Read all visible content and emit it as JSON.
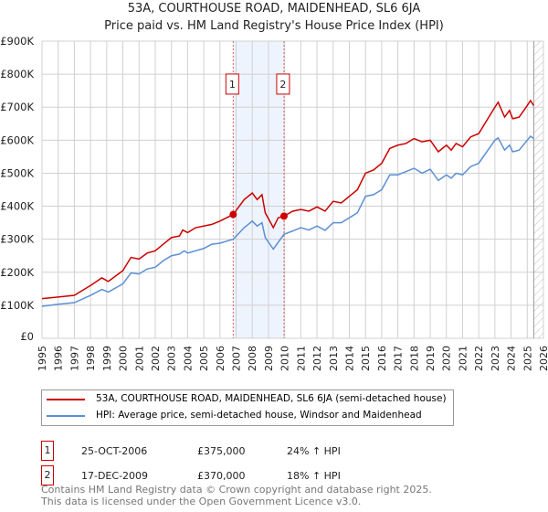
{
  "chart_data": {
    "type": "line",
    "title": "53A, COURTHOUSE ROAD, MAIDENHEAD, SL6 6JA",
    "subtitle": "Price paid vs. HM Land Registry's House Price Index (HPI)",
    "xlim": [
      1995,
      2026
    ],
    "ylim": [
      0,
      900000
    ],
    "yticks": [
      {
        "v": 0,
        "l": "£0"
      },
      {
        "v": 100000,
        "l": "£100K"
      },
      {
        "v": 200000,
        "l": "£200K"
      },
      {
        "v": 300000,
        "l": "£300K"
      },
      {
        "v": 400000,
        "l": "£400K"
      },
      {
        "v": 500000,
        "l": "£500K"
      },
      {
        "v": 600000,
        "l": "£600K"
      },
      {
        "v": 700000,
        "l": "£700K"
      },
      {
        "v": 800000,
        "l": "£800K"
      },
      {
        "v": 900000,
        "l": "£900K"
      }
    ],
    "xticks": [
      "1995",
      "1996",
      "1997",
      "1998",
      "1999",
      "2000",
      "2001",
      "2002",
      "2003",
      "2004",
      "2005",
      "2006",
      "2007",
      "2008",
      "2009",
      "2010",
      "2011",
      "2012",
      "2013",
      "2014",
      "2015",
      "2016",
      "2017",
      "2018",
      "2019",
      "2020",
      "2021",
      "2022",
      "2023",
      "2024",
      "2025",
      "2026"
    ],
    "grid": true,
    "shaded_range": [
      2006.82,
      2009.96
    ],
    "future_hatch_from": 2025.4,
    "series": [
      {
        "name": "53A, COURTHOUSE ROAD, MAIDENHEAD, SL6 6JA (semi-detached house)",
        "color": "#cc0000",
        "x": [
          1995,
          1996,
          1997,
          1998,
          1998.7,
          1999.1,
          2000,
          2000.5,
          2001,
          2001.5,
          2002,
          2002.5,
          2003,
          2003.5,
          2003.7,
          2004,
          2004.5,
          2005,
          2005.5,
          2006,
          2006.82,
          2007.5,
          2008,
          2008.3,
          2008.6,
          2008.8,
          2009.3,
          2009.6,
          2009.96,
          2010.5,
          2011,
          2011.5,
          2012,
          2012.5,
          2013,
          2013.5,
          2014,
          2014.5,
          2015,
          2015.5,
          2016,
          2016.5,
          2017,
          2017.5,
          2018,
          2018.5,
          2019,
          2019.5,
          2020,
          2020.3,
          2020.6,
          2021,
          2021.5,
          2022,
          2022.5,
          2023,
          2023.2,
          2023.6,
          2023.9,
          2024.1,
          2024.5,
          2025,
          2025.2,
          2025.4
        ],
        "y": [
          120000,
          125000,
          130000,
          160000,
          183000,
          172000,
          205000,
          245000,
          240000,
          258000,
          265000,
          285000,
          305000,
          310000,
          328000,
          320000,
          335000,
          340000,
          345000,
          355000,
          375000,
          420000,
          440000,
          420000,
          435000,
          380000,
          335000,
          365000,
          370000,
          385000,
          390000,
          385000,
          398000,
          385000,
          415000,
          410000,
          430000,
          450000,
          500000,
          510000,
          530000,
          575000,
          585000,
          590000,
          605000,
          595000,
          600000,
          565000,
          585000,
          570000,
          590000,
          580000,
          610000,
          620000,
          660000,
          700000,
          715000,
          670000,
          690000,
          665000,
          670000,
          705000,
          720000,
          705000
        ]
      },
      {
        "name": "HPI: Average price, semi-detached house, Windsor and Maidenhead",
        "color": "#5b8fd4",
        "x": [
          1995,
          1996,
          1997,
          1998,
          1998.7,
          1999.1,
          2000,
          2000.5,
          2001,
          2001.5,
          2002,
          2002.5,
          2003,
          2003.5,
          2003.8,
          2004,
          2005,
          2005.5,
          2006,
          2006.82,
          2007.5,
          2008,
          2008.3,
          2008.6,
          2008.8,
          2009.3,
          2009.96,
          2010.5,
          2011,
          2011.5,
          2012,
          2012.5,
          2013,
          2013.5,
          2014,
          2014.5,
          2015,
          2015.5,
          2016,
          2016.5,
          2017,
          2017.5,
          2018,
          2018.5,
          2019,
          2019.5,
          2020,
          2020.3,
          2020.6,
          2021,
          2021.5,
          2022,
          2022.5,
          2023,
          2023.2,
          2023.6,
          2023.9,
          2024.1,
          2024.5,
          2025,
          2025.2,
          2025.4
        ],
        "y": [
          97000,
          103000,
          108000,
          130000,
          148000,
          140000,
          165000,
          198000,
          195000,
          210000,
          215000,
          235000,
          250000,
          255000,
          265000,
          258000,
          272000,
          285000,
          288000,
          300000,
          335000,
          355000,
          340000,
          350000,
          305000,
          270000,
          315000,
          325000,
          335000,
          328000,
          340000,
          327000,
          350000,
          350000,
          365000,
          380000,
          430000,
          435000,
          450000,
          495000,
          495000,
          505000,
          515000,
          500000,
          512000,
          478000,
          495000,
          485000,
          500000,
          495000,
          520000,
          530000,
          565000,
          600000,
          607000,
          570000,
          585000,
          565000,
          570000,
          600000,
          612000,
          605000
        ]
      }
    ],
    "sales": [
      {
        "label": "1",
        "x": 2006.82,
        "y": 375000,
        "date": "25-OCT-2006",
        "price": "£375,000",
        "hpi": "24% ↑ HPI"
      },
      {
        "label": "2",
        "x": 2009.96,
        "y": 370000,
        "date": "17-DEC-2009",
        "price": "£370,000",
        "hpi": "18% ↑ HPI"
      }
    ]
  },
  "footer": {
    "line1": "Contains HM Land Registry data © Crown copyright and database right 2025.",
    "line2": "This data is licensed under the Open Government Licence v3.0."
  }
}
